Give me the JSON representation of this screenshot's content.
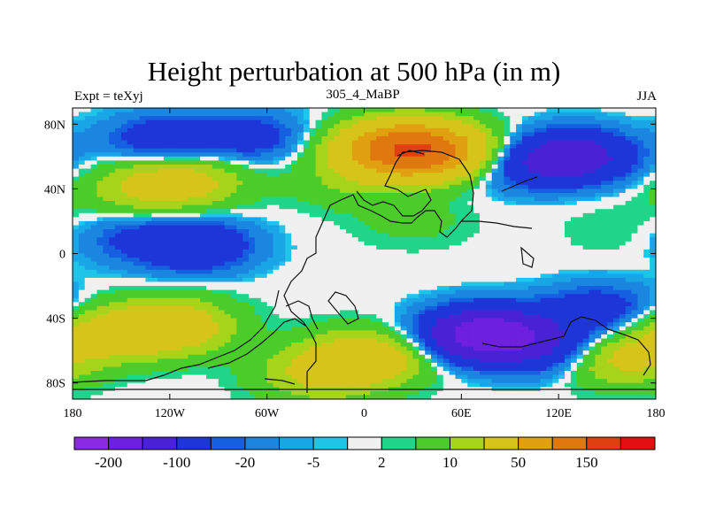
{
  "chart_data": {
    "type": "heatmap",
    "title": "Height perturbation at 500 hPa (in m)",
    "left_string": "Expt = teXyj",
    "center_string": "305_4_MaBP",
    "right_string": "JJA",
    "xlim": [
      -180,
      180
    ],
    "ylim": [
      -90,
      90
    ],
    "x_ticks": [
      {
        "value": -180,
        "label": "180"
      },
      {
        "value": -120,
        "label": "120W"
      },
      {
        "value": -60,
        "label": "60W"
      },
      {
        "value": 0,
        "label": "0"
      },
      {
        "value": 60,
        "label": "60E"
      },
      {
        "value": 120,
        "label": "120E"
      },
      {
        "value": 180,
        "label": "180"
      }
    ],
    "y_ticks": [
      {
        "value": 80,
        "label": "80N"
      },
      {
        "value": 40,
        "label": "40N"
      },
      {
        "value": 0,
        "label": "0"
      },
      {
        "value": -40,
        "label": "40S"
      },
      {
        "value": -80,
        "label": "80S"
      }
    ],
    "colorbar": {
      "colors": [
        "#8a2be2",
        "#6f1fe0",
        "#4a22d6",
        "#1e36d8",
        "#1460e0",
        "#1a86e0",
        "#1aa6e6",
        "#20c4e8",
        "#f0f0f0",
        "#20d48a",
        "#4ccc2a",
        "#a6d41a",
        "#d6c41a",
        "#e0a010",
        "#e07810",
        "#e04010",
        "#e01010"
      ],
      "labels": [
        {
          "after_box": 1,
          "text": "-200"
        },
        {
          "after_box": 3,
          "text": "-100"
        },
        {
          "after_box": 5,
          "text": "-20"
        },
        {
          "after_box": 7,
          "text": "-5"
        },
        {
          "after_box": 9,
          "text": "2"
        },
        {
          "after_box": 11,
          "text": "10"
        },
        {
          "after_box": 13,
          "text": "50"
        },
        {
          "after_box": 15,
          "text": "150"
        }
      ]
    },
    "anomaly_centers": [
      {
        "lon": -125,
        "lat": 70,
        "value": -30
      },
      {
        "lon": -70,
        "lat": 72,
        "value": -25
      },
      {
        "lon": 20,
        "lat": 65,
        "value": 120
      },
      {
        "lon": 45,
        "lat": 63,
        "value": 90
      },
      {
        "lon": 130,
        "lat": 60,
        "value": -60
      },
      {
        "lon": 95,
        "lat": 55,
        "value": -25
      },
      {
        "lon": -110,
        "lat": 45,
        "value": 40
      },
      {
        "lon": -140,
        "lat": 40,
        "value": 25
      },
      {
        "lon": -10,
        "lat": 45,
        "value": 15
      },
      {
        "lon": -105,
        "lat": 5,
        "value": -40
      },
      {
        "lon": -150,
        "lat": 10,
        "value": -15
      },
      {
        "lon": -120,
        "lat": -45,
        "value": 60
      },
      {
        "lon": -160,
        "lat": -50,
        "value": 40
      },
      {
        "lon": 0,
        "lat": -65,
        "value": 60
      },
      {
        "lon": -30,
        "lat": -75,
        "value": 30
      },
      {
        "lon": 75,
        "lat": -50,
        "value": -110
      },
      {
        "lon": 120,
        "lat": -60,
        "value": -35
      },
      {
        "lon": 145,
        "lat": -35,
        "value": -30
      },
      {
        "lon": 155,
        "lat": -65,
        "value": 45
      },
      {
        "lon": 30,
        "lat": 20,
        "value": 8
      },
      {
        "lon": 160,
        "lat": 15,
        "value": 6
      }
    ]
  }
}
